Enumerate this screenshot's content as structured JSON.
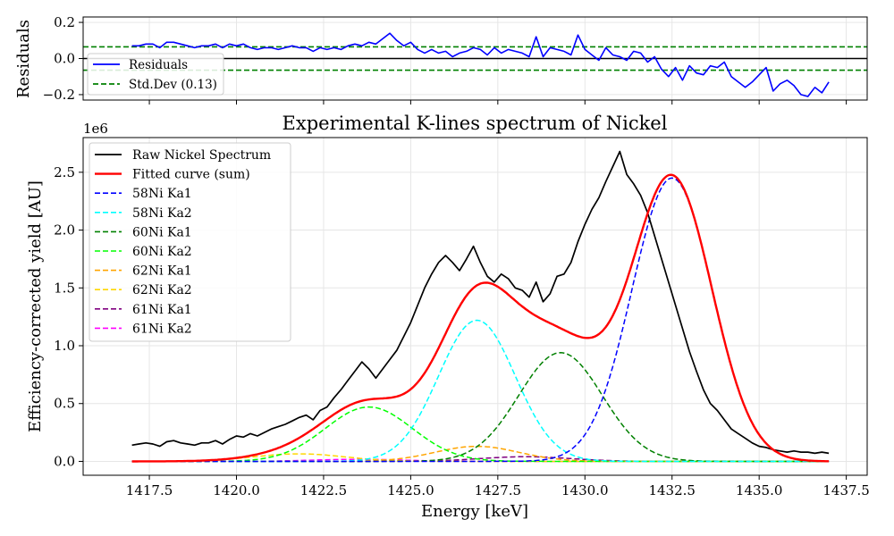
{
  "chart_data": [
    {
      "id": "residuals",
      "type": "line",
      "title": "",
      "xlabel": "",
      "ylabel": "Residuals",
      "xlim": [
        1415.6,
        1438.1
      ],
      "ylim": [
        -0.23,
        0.23
      ],
      "yticks": [
        -0.2,
        0.0,
        0.2
      ],
      "ytick_labels": [
        "−0.2",
        "0.0",
        "0.2"
      ],
      "xticks": [
        1417.5,
        1420.0,
        1422.5,
        1425.0,
        1427.5,
        1430.0,
        1432.5,
        1435.0,
        1437.5
      ],
      "xtick_labels_visible": false,
      "grid": true,
      "legend_position": "lower-left",
      "series": [
        {
          "name": "Residuals",
          "color": "#0000ff",
          "style": "solid",
          "x": [
            1417.0,
            1417.2,
            1417.4,
            1417.6,
            1417.8,
            1418.0,
            1418.2,
            1418.4,
            1418.6,
            1418.8,
            1419.0,
            1419.2,
            1419.4,
            1419.6,
            1419.8,
            1420.0,
            1420.2,
            1420.4,
            1420.6,
            1420.8,
            1421.0,
            1421.2,
            1421.4,
            1421.6,
            1421.8,
            1422.0,
            1422.2,
            1422.4,
            1422.6,
            1422.8,
            1423.0,
            1423.2,
            1423.4,
            1423.6,
            1423.8,
            1424.0,
            1424.2,
            1424.4,
            1424.6,
            1424.8,
            1425.0,
            1425.2,
            1425.4,
            1425.6,
            1425.8,
            1426.0,
            1426.2,
            1426.4,
            1426.6,
            1426.8,
            1427.0,
            1427.2,
            1427.4,
            1427.6,
            1427.8,
            1428.0,
            1428.2,
            1428.4,
            1428.6,
            1428.8,
            1429.0,
            1429.2,
            1429.4,
            1429.6,
            1429.8,
            1430.0,
            1430.2,
            1430.4,
            1430.6,
            1430.8,
            1431.0,
            1431.2,
            1431.4,
            1431.6,
            1431.8,
            1432.0,
            1432.2,
            1432.4,
            1432.6,
            1432.8,
            1433.0,
            1433.2,
            1433.4,
            1433.6,
            1433.8,
            1434.0,
            1434.2,
            1434.4,
            1434.6,
            1434.8,
            1435.0,
            1435.2,
            1435.4,
            1435.6,
            1435.8,
            1436.0,
            1436.2,
            1436.4,
            1436.6,
            1436.8,
            1437.0
          ],
          "values": [
            0.07,
            0.07,
            0.08,
            0.08,
            0.06,
            0.09,
            0.09,
            0.08,
            0.07,
            0.06,
            0.07,
            0.07,
            0.08,
            0.06,
            0.08,
            0.07,
            0.08,
            0.06,
            0.05,
            0.06,
            0.06,
            0.05,
            0.06,
            0.07,
            0.06,
            0.06,
            0.04,
            0.06,
            0.05,
            0.06,
            0.05,
            0.07,
            0.08,
            0.07,
            0.09,
            0.08,
            0.11,
            0.14,
            0.1,
            0.07,
            0.09,
            0.05,
            0.03,
            0.05,
            0.03,
            0.04,
            0.01,
            0.03,
            0.04,
            0.06,
            0.05,
            0.02,
            0.06,
            0.03,
            0.05,
            0.04,
            0.03,
            0.01,
            0.12,
            0.01,
            0.06,
            0.05,
            0.04,
            0.02,
            0.13,
            0.05,
            0.02,
            -0.01,
            0.06,
            0.02,
            0.01,
            -0.01,
            0.04,
            0.03,
            -0.02,
            0.01,
            -0.06,
            -0.1,
            -0.05,
            -0.12,
            -0.04,
            -0.08,
            -0.09,
            -0.04,
            -0.05,
            -0.02,
            -0.1,
            -0.13,
            -0.16,
            -0.13,
            -0.09,
            -0.05,
            -0.18,
            -0.14,
            -0.12,
            -0.15,
            -0.2,
            -0.21,
            -0.16,
            -0.19,
            -0.13
          ]
        },
        {
          "name": "Std.Dev (0.13)",
          "color": "#008000",
          "style": "dashed",
          "hlines": [
            0.0644,
            -0.0644
          ]
        }
      ],
      "zero_line": {
        "value": 0.0,
        "color": "#000000"
      }
    },
    {
      "id": "spectrum",
      "type": "line",
      "title": "Experimental K-lines spectrum of Nickel",
      "xlabel": "Energy [keV]",
      "ylabel": "Efficiency-corrected yield [AU]",
      "offset_label": "1e6",
      "xlim": [
        1415.6,
        1438.1
      ],
      "ylim": [
        -0.12,
        2.8
      ],
      "xticks": [
        1417.5,
        1420.0,
        1422.5,
        1425.0,
        1427.5,
        1430.0,
        1432.5,
        1435.0,
        1437.5
      ],
      "xtick_labels": [
        "1417.5",
        "1420.0",
        "1422.5",
        "1425.0",
        "1427.5",
        "1430.0",
        "1432.5",
        "1435.0",
        "1437.5"
      ],
      "yticks": [
        0.0,
        0.5,
        1.0,
        1.5,
        2.0,
        2.5
      ],
      "ytick_labels": [
        "0.0",
        "0.5",
        "1.0",
        "1.5",
        "2.0",
        "2.5"
      ],
      "grid": true,
      "legend_position": "top-left",
      "raw": {
        "name": "Raw Nickel Spectrum",
        "color": "#000000",
        "x": [
          1417.0,
          1417.2,
          1417.4,
          1417.6,
          1417.8,
          1418.0,
          1418.2,
          1418.4,
          1418.6,
          1418.8,
          1419.0,
          1419.2,
          1419.4,
          1419.6,
          1419.8,
          1420.0,
          1420.2,
          1420.4,
          1420.6,
          1420.8,
          1421.0,
          1421.2,
          1421.4,
          1421.6,
          1421.8,
          1422.0,
          1422.2,
          1422.4,
          1422.6,
          1422.8,
          1423.0,
          1423.2,
          1423.4,
          1423.6,
          1423.8,
          1424.0,
          1424.2,
          1424.4,
          1424.6,
          1424.8,
          1425.0,
          1425.2,
          1425.4,
          1425.6,
          1425.8,
          1426.0,
          1426.2,
          1426.4,
          1426.6,
          1426.8,
          1427.0,
          1427.2,
          1427.4,
          1427.6,
          1427.8,
          1428.0,
          1428.2,
          1428.4,
          1428.6,
          1428.8,
          1429.0,
          1429.2,
          1429.4,
          1429.6,
          1429.8,
          1430.0,
          1430.2,
          1430.4,
          1430.6,
          1430.8,
          1431.0,
          1431.2,
          1431.4,
          1431.6,
          1431.8,
          1432.0,
          1432.2,
          1432.4,
          1432.6,
          1432.8,
          1433.0,
          1433.2,
          1433.4,
          1433.6,
          1433.8,
          1434.0,
          1434.2,
          1434.4,
          1434.6,
          1434.8,
          1435.0,
          1435.2,
          1435.4,
          1435.6,
          1435.8,
          1436.0,
          1436.2,
          1436.4,
          1436.6,
          1436.8,
          1437.0
        ],
        "values": [
          0.14,
          0.15,
          0.16,
          0.15,
          0.13,
          0.17,
          0.18,
          0.16,
          0.15,
          0.14,
          0.16,
          0.16,
          0.18,
          0.15,
          0.19,
          0.22,
          0.21,
          0.24,
          0.22,
          0.25,
          0.28,
          0.3,
          0.32,
          0.35,
          0.38,
          0.4,
          0.36,
          0.44,
          0.47,
          0.55,
          0.62,
          0.7,
          0.78,
          0.86,
          0.8,
          0.72,
          0.8,
          0.88,
          0.96,
          1.08,
          1.2,
          1.35,
          1.5,
          1.62,
          1.72,
          1.78,
          1.72,
          1.65,
          1.75,
          1.86,
          1.72,
          1.6,
          1.55,
          1.62,
          1.58,
          1.5,
          1.48,
          1.42,
          1.55,
          1.38,
          1.45,
          1.6,
          1.62,
          1.72,
          1.9,
          2.05,
          2.18,
          2.28,
          2.42,
          2.55,
          2.68,
          2.48,
          2.4,
          2.3,
          2.15,
          1.95,
          1.75,
          1.55,
          1.35,
          1.15,
          0.95,
          0.78,
          0.62,
          0.5,
          0.44,
          0.36,
          0.28,
          0.24,
          0.2,
          0.16,
          0.13,
          0.12,
          0.1,
          0.09,
          0.08,
          0.09,
          0.08,
          0.08,
          0.07,
          0.08,
          0.07
        ]
      },
      "series": [
        {
          "name": "Fitted curve (sum)",
          "color": "#ff0000",
          "style": "solid",
          "is_sum": true
        },
        {
          "name": "58Ni Ka1",
          "color": "#0000ff",
          "style": "dashed",
          "gaussian": {
            "amplitude": 2.45,
            "center": 1432.5,
            "sigma": 1.15
          }
        },
        {
          "name": "58Ni Ka2",
          "color": "#00ffff",
          "style": "dashed",
          "gaussian": {
            "amplitude": 1.22,
            "center": 1426.9,
            "sigma": 1.1
          }
        },
        {
          "name": "60Ni Ka1",
          "color": "#008000",
          "style": "dashed",
          "gaussian": {
            "amplitude": 0.94,
            "center": 1429.3,
            "sigma": 1.2
          }
        },
        {
          "name": "60Ni Ka2",
          "color": "#00ff00",
          "style": "dashed",
          "gaussian": {
            "amplitude": 0.47,
            "center": 1423.8,
            "sigma": 1.25
          }
        },
        {
          "name": "62Ni Ka1",
          "color": "#ffa500",
          "style": "dashed",
          "gaussian": {
            "amplitude": 0.13,
            "center": 1426.9,
            "sigma": 1.2
          }
        },
        {
          "name": "62Ni Ka2",
          "color": "#ffd700",
          "style": "dashed",
          "gaussian": {
            "amplitude": 0.065,
            "center": 1421.8,
            "sigma": 1.3
          }
        },
        {
          "name": "61Ni Ka1",
          "color": "#800080",
          "style": "dashed",
          "gaussian": {
            "amplitude": 0.04,
            "center": 1428.3,
            "sigma": 1.3
          }
        },
        {
          "name": "61Ni Ka2",
          "color": "#ff00ff",
          "style": "dashed",
          "gaussian": {
            "amplitude": 0.018,
            "center": 1423.5,
            "sigma": 1.3
          }
        }
      ]
    }
  ]
}
